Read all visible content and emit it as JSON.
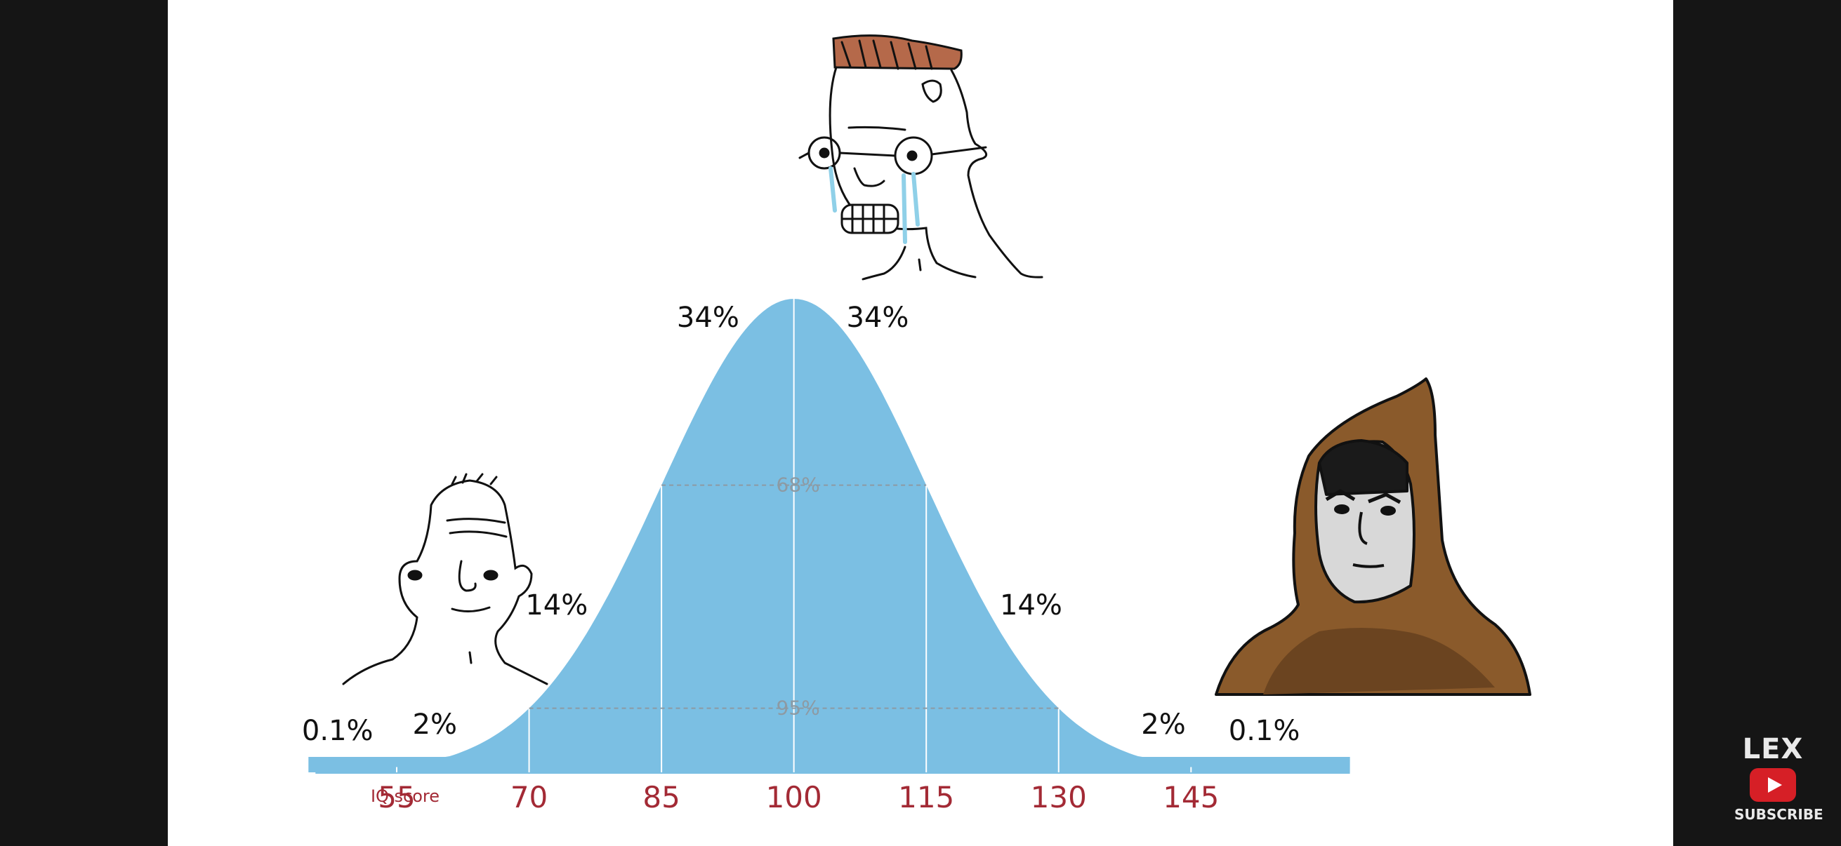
{
  "chart_data": {
    "type": "area",
    "title": "",
    "xlabel": "IQ score",
    "ylabel": "",
    "x_ticks": [
      55,
      70,
      85,
      100,
      115,
      130,
      145
    ],
    "distribution": {
      "mean": 100,
      "sd": 15
    },
    "xlim": [
      45,
      163
    ],
    "bands": [
      {
        "range": [
          40,
          55
        ],
        "label": "0.1%"
      },
      {
        "range": [
          55,
          70
        ],
        "label": "2%"
      },
      {
        "range": [
          70,
          85
        ],
        "label": "14%"
      },
      {
        "range": [
          85,
          100
        ],
        "label": "34%"
      },
      {
        "range": [
          100,
          115
        ],
        "label": "34%"
      },
      {
        "range": [
          115,
          130
        ],
        "label": "14%"
      },
      {
        "range": [
          130,
          145
        ],
        "label": "2%"
      },
      {
        "range": [
          145,
          160
        ],
        "label": "0.1%"
      }
    ],
    "inner_labels": [
      {
        "range": [
          85,
          115
        ],
        "label": "68%"
      },
      {
        "range": [
          70,
          130
        ],
        "label": "95%"
      }
    ],
    "fill_color": "#7bbfe3",
    "tick_color": "#a32a35"
  },
  "channel": {
    "name": "LEX",
    "subscribe": "SUBSCRIBE",
    "button_color": "#d61f26"
  }
}
